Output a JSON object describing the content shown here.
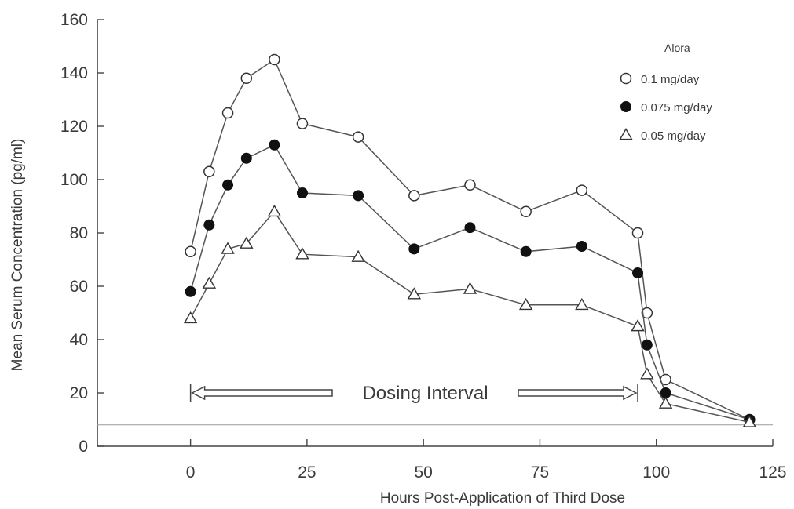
{
  "chart_data": {
    "type": "line",
    "title": "",
    "xlabel": "Hours Post-Application of Third Dose",
    "ylabel": "Mean Serum Concentration (pg/ml)",
    "xlim": [
      -20,
      125
    ],
    "ylim": [
      0,
      160
    ],
    "xticks": [
      0,
      25,
      50,
      75,
      100,
      125
    ],
    "yticks": [
      0,
      20,
      40,
      60,
      80,
      100,
      120,
      140,
      160
    ],
    "grid": false,
    "legend": {
      "title": "Alora",
      "placement": "top-right"
    },
    "reference_line_y": 8,
    "annotation": {
      "text": "Dosing Interval",
      "x_start": 0,
      "x_end": 96,
      "y": 20
    },
    "series": [
      {
        "name": "0.1 mg/day",
        "marker": "open-circle",
        "x": [
          0,
          4,
          8,
          12,
          18,
          24,
          36,
          48,
          60,
          72,
          84,
          96,
          98,
          102,
          120
        ],
        "y": [
          73,
          103,
          125,
          138,
          145,
          121,
          116,
          94,
          98,
          88,
          96,
          80,
          50,
          25,
          10
        ]
      },
      {
        "name": "0.075 mg/day",
        "marker": "filled-circle",
        "x": [
          0,
          4,
          8,
          12,
          18,
          24,
          36,
          48,
          60,
          72,
          84,
          96,
          98,
          102,
          120
        ],
        "y": [
          58,
          83,
          98,
          108,
          113,
          95,
          94,
          74,
          82,
          73,
          75,
          65,
          38,
          20,
          10
        ]
      },
      {
        "name": "0.05 mg/day",
        "marker": "open-triangle",
        "x": [
          0,
          4,
          8,
          12,
          18,
          24,
          36,
          48,
          60,
          72,
          84,
          96,
          98,
          102,
          120
        ],
        "y": [
          48,
          61,
          74,
          76,
          88,
          72,
          71,
          57,
          59,
          53,
          53,
          45,
          27,
          16,
          9
        ]
      }
    ]
  }
}
